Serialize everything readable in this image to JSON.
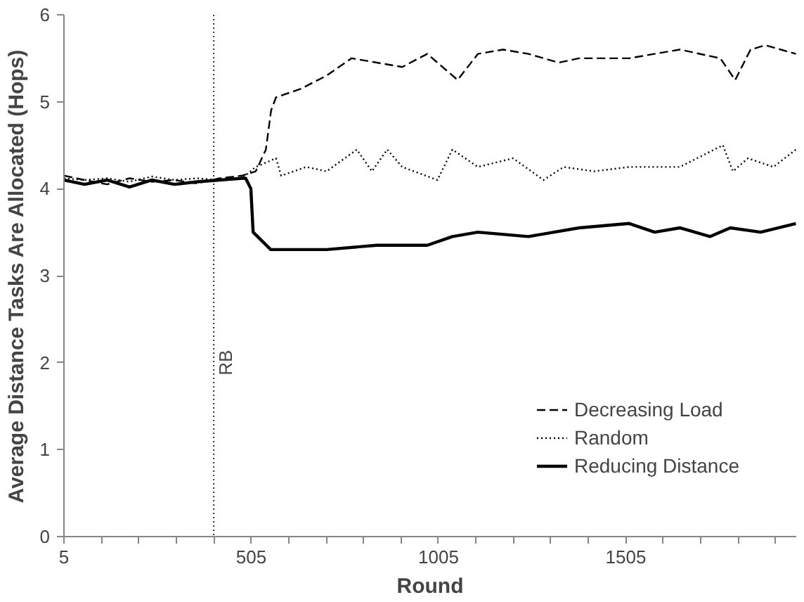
{
  "chart_data": {
    "type": "line",
    "xlabel": "Round",
    "ylabel": "Average Distance Tasks Are Allocated (Hops)",
    "xlim": [
      5,
      1960
    ],
    "ylim": [
      0,
      6
    ],
    "xticks": [
      5,
      {
        "value": 105,
        "label": null
      },
      {
        "value": 205,
        "label": null
      },
      {
        "value": 305,
        "label": null
      },
      {
        "value": 405,
        "label": null
      },
      505,
      {
        "value": 605,
        "label": null
      },
      {
        "value": 705,
        "label": null
      },
      {
        "value": 805,
        "label": null
      },
      {
        "value": 905,
        "label": null
      },
      1005,
      {
        "value": 1105,
        "label": null
      },
      {
        "value": 1205,
        "label": null
      },
      {
        "value": 1305,
        "label": null
      },
      {
        "value": 1405,
        "label": null
      },
      1505,
      {
        "value": 1605,
        "label": null
      },
      {
        "value": 1705,
        "label": null
      },
      {
        "value": 1805,
        "label": null
      },
      {
        "value": 1905,
        "label": null
      }
    ],
    "yticks": [
      0,
      1,
      2,
      3,
      4,
      5,
      6
    ],
    "grid": false,
    "legend": "bottom right",
    "ref_lines": [
      {
        "axis": "x",
        "value": 405,
        "label": "RB",
        "color": "#000000",
        "line_style": "dotted"
      }
    ],
    "series": [
      {
        "name": "Decreasing Load",
        "color": "#000000",
        "line_style": "dashed",
        "x": [
          5,
          60,
          120,
          180,
          240,
          300,
          360,
          420,
          480,
          517,
          544,
          558,
          571,
          638,
          706,
          773,
          840,
          908,
          975,
          1056,
          1110,
          1177,
          1245,
          1326,
          1380,
          1514,
          1649,
          1757,
          1797,
          1838,
          1878,
          1959
        ],
        "values": [
          4.15,
          4.1,
          4.05,
          4.12,
          4.08,
          4.1,
          4.06,
          4.12,
          4.15,
          4.2,
          4.45,
          4.9,
          5.05,
          5.15,
          5.3,
          5.5,
          5.45,
          5.4,
          5.55,
          5.25,
          5.55,
          5.6,
          5.55,
          5.45,
          5.5,
          5.5,
          5.6,
          5.5,
          5.25,
          5.6,
          5.65,
          5.55
        ]
      },
      {
        "name": "Random",
        "color": "#000000",
        "line_style": "dotted",
        "x": [
          5,
          60,
          120,
          180,
          240,
          300,
          360,
          420,
          480,
          517,
          571,
          585,
          652,
          706,
          787,
          827,
          868,
          908,
          1002,
          1042,
          1110,
          1204,
          1285,
          1339,
          1420,
          1514,
          1649,
          1764,
          1791,
          1831,
          1899,
          1959
        ],
        "values": [
          4.12,
          4.1,
          4.12,
          4.08,
          4.14,
          4.1,
          4.12,
          4.1,
          4.12,
          4.25,
          4.35,
          4.15,
          4.25,
          4.2,
          4.45,
          4.2,
          4.45,
          4.25,
          4.1,
          4.45,
          4.25,
          4.35,
          4.1,
          4.25,
          4.2,
          4.25,
          4.25,
          4.5,
          4.2,
          4.35,
          4.25,
          4.45
        ]
      },
      {
        "name": "Reducing Distance",
        "color": "#000000",
        "line_style": "solid",
        "x": [
          5,
          60,
          120,
          180,
          240,
          300,
          360,
          420,
          480,
          490,
          504,
          510,
          557,
          706,
          840,
          975,
          1042,
          1110,
          1245,
          1380,
          1514,
          1582,
          1649,
          1730,
          1784,
          1865,
          1959
        ],
        "values": [
          4.1,
          4.05,
          4.1,
          4.02,
          4.1,
          4.05,
          4.08,
          4.1,
          4.12,
          4.12,
          4.0,
          3.5,
          3.3,
          3.3,
          3.35,
          3.35,
          3.45,
          3.5,
          3.45,
          3.55,
          3.6,
          3.5,
          3.55,
          3.45,
          3.55,
          3.5,
          3.6
        ]
      }
    ]
  }
}
